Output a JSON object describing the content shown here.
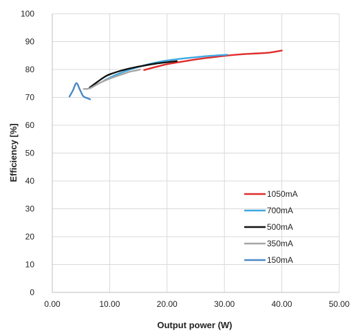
{
  "chart_data": {
    "type": "line",
    "title": "",
    "xlabel": "Output power (W)",
    "ylabel": "Efficiency [%]",
    "xlim": [
      0,
      50
    ],
    "ylim": [
      0,
      100
    ],
    "xticks": [
      "0.00",
      "10.00",
      "20.00",
      "30.00",
      "40.00",
      "50.00"
    ],
    "yticks": [
      "0",
      "10",
      "20",
      "30",
      "40",
      "50",
      "60",
      "70",
      "80",
      "90",
      "100"
    ],
    "grid": true,
    "legend": "right",
    "series": [
      {
        "name": "1050mA",
        "color": "#e02b2b",
        "x": [
          16.0,
          18.0,
          20.0,
          22.0,
          24.0,
          26.0,
          28.0,
          30.0,
          32.0,
          34.0,
          36.0,
          38.0,
          40.0
        ],
        "y": [
          79.8,
          80.9,
          81.9,
          82.6,
          83.3,
          83.9,
          84.4,
          84.9,
          85.3,
          85.6,
          85.8,
          86.1,
          86.8
        ]
      },
      {
        "name": "700mA",
        "color": "#3ea8e0",
        "x": [
          9.0,
          11.0,
          13.0,
          15.0,
          17.0,
          19.0,
          21.0,
          23.0,
          25.0,
          27.0,
          29.0,
          30.5
        ],
        "y": [
          76.0,
          78.0,
          79.6,
          80.9,
          82.0,
          82.9,
          83.5,
          84.0,
          84.4,
          84.8,
          85.1,
          85.3
        ]
      },
      {
        "name": "500mA",
        "color": "#111111",
        "x": [
          6.5,
          7.5,
          8.5,
          9.5,
          10.5,
          12.0,
          14.0,
          16.0,
          18.0,
          20.0,
          21.7
        ],
        "y": [
          73.5,
          75.0,
          76.5,
          77.8,
          78.6,
          79.6,
          80.6,
          81.4,
          82.1,
          82.6,
          83.0
        ]
      },
      {
        "name": "350mA",
        "color": "#a6a6a6",
        "x": [
          5.5,
          6.5,
          7.5,
          8.5,
          9.5,
          10.5,
          11.5,
          12.5,
          13.5,
          14.5,
          15.3
        ],
        "y": [
          73.0,
          73.2,
          74.3,
          75.4,
          76.3,
          77.1,
          77.8,
          78.5,
          79.2,
          79.6,
          80.0
        ]
      },
      {
        "name": "150mA",
        "color": "#4a88c4",
        "x": [
          3.0,
          3.6,
          4.2,
          4.8,
          5.4,
          6.0,
          6.6
        ],
        "y": [
          70.3,
          72.5,
          75.1,
          72.8,
          70.4,
          69.8,
          69.3
        ]
      }
    ]
  }
}
